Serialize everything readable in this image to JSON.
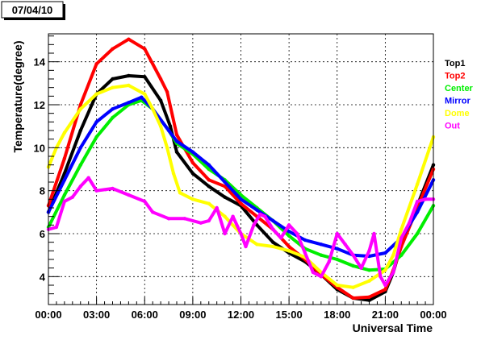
{
  "chart_data": {
    "type": "scatter",
    "title": "07/04/10",
    "xlabel": "Universal Time",
    "ylabel": "Temperature(degree)",
    "xlim": [
      0,
      24
    ],
    "ylim": [
      2.7,
      15.3
    ],
    "grid": true,
    "legend_position": "right",
    "x_ticks": [
      {
        "value": 0,
        "label": "00:00"
      },
      {
        "value": 3,
        "label": "03:00"
      },
      {
        "value": 6,
        "label": "06:00"
      },
      {
        "value": 9,
        "label": "09:00"
      },
      {
        "value": 12,
        "label": "12:00"
      },
      {
        "value": 15,
        "label": "15:00"
      },
      {
        "value": 18,
        "label": "18:00"
      },
      {
        "value": 21,
        "label": "21:00"
      },
      {
        "value": 24,
        "label": "00:00"
      }
    ],
    "y_ticks": [
      {
        "value": 4,
        "label": "4"
      },
      {
        "value": 6,
        "label": "6"
      },
      {
        "value": 8,
        "label": "8"
      },
      {
        "value": 10,
        "label": "10"
      },
      {
        "value": 12,
        "label": "12"
      },
      {
        "value": 14,
        "label": "14"
      }
    ],
    "series": [
      {
        "name": "Top1",
        "color": "#000000",
        "points": [
          [
            0,
            7.0
          ],
          [
            1,
            8.8
          ],
          [
            2,
            10.8
          ],
          [
            3,
            12.5
          ],
          [
            4,
            13.2
          ],
          [
            5,
            13.35
          ],
          [
            6,
            13.3
          ],
          [
            7,
            12.2
          ],
          [
            7.6,
            11.0
          ],
          [
            8,
            9.8
          ],
          [
            9,
            8.8
          ],
          [
            10,
            8.2
          ],
          [
            11,
            7.7
          ],
          [
            12,
            7.3
          ],
          [
            13,
            6.4
          ],
          [
            14,
            5.6
          ],
          [
            15,
            5.1
          ],
          [
            16,
            4.7
          ],
          [
            17,
            4.1
          ],
          [
            18,
            3.4
          ],
          [
            19,
            3.0
          ],
          [
            20,
            2.9
          ],
          [
            21,
            3.3
          ],
          [
            21.5,
            4.2
          ],
          [
            22,
            5.5
          ],
          [
            23,
            7.3
          ],
          [
            24,
            9.2
          ]
        ]
      },
      {
        "name": "Top2",
        "color": "#ff0000",
        "points": [
          [
            0,
            7.3
          ],
          [
            1,
            9.5
          ],
          [
            2,
            12.0
          ],
          [
            3,
            13.9
          ],
          [
            4,
            14.6
          ],
          [
            5,
            15.05
          ],
          [
            6,
            14.6
          ],
          [
            7,
            13.2
          ],
          [
            7.4,
            12.6
          ],
          [
            8,
            10.6
          ],
          [
            9,
            9.3
          ],
          [
            10,
            8.5
          ],
          [
            11,
            8.2
          ],
          [
            12,
            7.4
          ],
          [
            13,
            6.8
          ],
          [
            14,
            6.2
          ],
          [
            15,
            5.4
          ],
          [
            16,
            4.8
          ],
          [
            17,
            4.1
          ],
          [
            18,
            3.5
          ],
          [
            19,
            3.0
          ],
          [
            20,
            3.05
          ],
          [
            21,
            3.4
          ],
          [
            21.5,
            4.3
          ],
          [
            22,
            5.4
          ],
          [
            23,
            7.2
          ],
          [
            24,
            9.0
          ]
        ]
      },
      {
        "name": "Center",
        "color": "#00ee00",
        "points": [
          [
            0,
            6.3
          ],
          [
            1,
            7.8
          ],
          [
            2,
            9.2
          ],
          [
            3,
            10.5
          ],
          [
            4,
            11.4
          ],
          [
            5,
            12.0
          ],
          [
            5.8,
            12.2
          ],
          [
            6.5,
            11.8
          ],
          [
            7.5,
            10.8
          ],
          [
            8,
            10.2
          ],
          [
            9,
            9.7
          ],
          [
            10,
            9.0
          ],
          [
            11,
            8.5
          ],
          [
            12,
            7.8
          ],
          [
            13,
            7.2
          ],
          [
            14,
            6.6
          ],
          [
            15,
            5.9
          ],
          [
            16,
            5.3
          ],
          [
            17,
            5.0
          ],
          [
            18,
            4.8
          ],
          [
            19,
            4.5
          ],
          [
            20,
            4.3
          ],
          [
            21,
            4.35
          ],
          [
            22,
            5.0
          ],
          [
            23,
            6.0
          ],
          [
            24,
            7.3
          ]
        ]
      },
      {
        "name": "Mirror",
        "color": "#0000ff",
        "points": [
          [
            0,
            7.0
          ],
          [
            1,
            8.5
          ],
          [
            2,
            10.0
          ],
          [
            3,
            11.2
          ],
          [
            4,
            11.8
          ],
          [
            5,
            12.1
          ],
          [
            5.8,
            12.35
          ],
          [
            6.5,
            11.8
          ],
          [
            7.5,
            10.8
          ],
          [
            8,
            10.3
          ],
          [
            9,
            9.8
          ],
          [
            10,
            9.2
          ],
          [
            11,
            8.4
          ],
          [
            12,
            7.6
          ],
          [
            13,
            7.1
          ],
          [
            14,
            6.6
          ],
          [
            15,
            6.1
          ],
          [
            16,
            5.7
          ],
          [
            17,
            5.5
          ],
          [
            18,
            5.3
          ],
          [
            19,
            5.0
          ],
          [
            20,
            4.95
          ],
          [
            21,
            5.1
          ],
          [
            22,
            5.8
          ],
          [
            23,
            7.0
          ],
          [
            24,
            8.5
          ]
        ]
      },
      {
        "name": "Dome",
        "color": "#ffff00",
        "points": [
          [
            0,
            9.1
          ],
          [
            0.5,
            10.0
          ],
          [
            1,
            10.7
          ],
          [
            2,
            11.8
          ],
          [
            3,
            12.5
          ],
          [
            4,
            12.8
          ],
          [
            5,
            12.9
          ],
          [
            6,
            12.5
          ],
          [
            6.5,
            11.8
          ],
          [
            7,
            11.0
          ],
          [
            7.4,
            10.0
          ],
          [
            7.8,
            8.8
          ],
          [
            8.2,
            7.9
          ],
          [
            9,
            7.6
          ],
          [
            10,
            7.4
          ],
          [
            11,
            6.8
          ],
          [
            12,
            6.0
          ],
          [
            13,
            5.5
          ],
          [
            14,
            5.4
          ],
          [
            15,
            5.2
          ],
          [
            16,
            4.9
          ],
          [
            17,
            4.2
          ],
          [
            18,
            3.6
          ],
          [
            19,
            3.5
          ],
          [
            20,
            3.8
          ],
          [
            21,
            4.3
          ],
          [
            21.5,
            5.0
          ],
          [
            22,
            6.2
          ],
          [
            23,
            8.3
          ],
          [
            24,
            10.5
          ]
        ]
      },
      {
        "name": "Out",
        "color": "#ff00ff",
        "points": [
          [
            0,
            6.2
          ],
          [
            0.5,
            6.3
          ],
          [
            1,
            7.5
          ],
          [
            1.5,
            7.7
          ],
          [
            2,
            8.2
          ],
          [
            2.5,
            8.6
          ],
          [
            3,
            8.0
          ],
          [
            4,
            8.1
          ],
          [
            5,
            7.8
          ],
          [
            6,
            7.5
          ],
          [
            6.5,
            7.0
          ],
          [
            7.5,
            6.7
          ],
          [
            8.5,
            6.7
          ],
          [
            9.5,
            6.5
          ],
          [
            10,
            6.6
          ],
          [
            10.5,
            7.2
          ],
          [
            11,
            6.0
          ],
          [
            11.5,
            6.8
          ],
          [
            12,
            6.0
          ],
          [
            12.3,
            5.4
          ],
          [
            12.8,
            6.4
          ],
          [
            13.2,
            6.9
          ],
          [
            13.5,
            6.8
          ],
          [
            14,
            6.2
          ],
          [
            14.5,
            5.8
          ],
          [
            15,
            6.4
          ],
          [
            15.5,
            6.0
          ],
          [
            16,
            5.1
          ],
          [
            16.5,
            4.2
          ],
          [
            17,
            4.0
          ],
          [
            17.5,
            4.7
          ],
          [
            18,
            6.0
          ],
          [
            18.5,
            5.5
          ],
          [
            19,
            5.0
          ],
          [
            19.5,
            4.4
          ],
          [
            20,
            5.2
          ],
          [
            20.3,
            6.0
          ],
          [
            20.7,
            4.0
          ],
          [
            21,
            3.6
          ],
          [
            21.5,
            4.2
          ],
          [
            22,
            5.8
          ],
          [
            22.5,
            6.5
          ],
          [
            23,
            7.5
          ],
          [
            23.5,
            7.6
          ],
          [
            24,
            7.6
          ]
        ]
      }
    ]
  }
}
